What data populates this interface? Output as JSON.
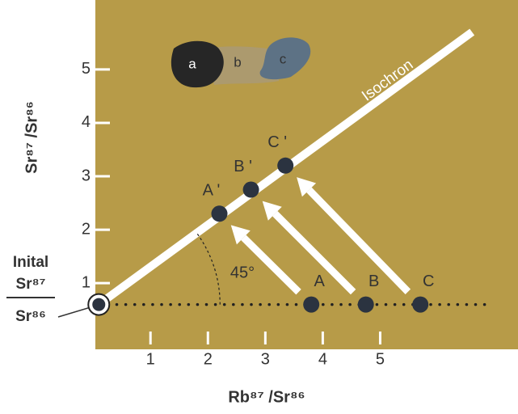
{
  "chart_data": {
    "type": "scatter",
    "y_label": "Sr⁸⁷ /Sr⁸⁶",
    "x_label": "Rb⁸⁷ /Sr⁸⁶",
    "initial_label": {
      "title": "Inital",
      "numerator": "Sr⁸⁷",
      "denominator": "Sr⁸⁶"
    },
    "isochron_label": "Isochron",
    "angle_label": "45°",
    "inset_labels": [
      "a",
      "b",
      "c"
    ],
    "xlim": [
      0.04,
      7.4
    ],
    "ylim": [
      -0.36,
      6.3
    ],
    "xticks": [
      1,
      2,
      3,
      4,
      5
    ],
    "yticks": [
      1,
      2,
      3,
      4,
      5
    ],
    "initial": {
      "x": 0.1,
      "y": 0.6
    },
    "isochron": {
      "x": [
        0.1,
        6.6
      ],
      "y": [
        0.6,
        5.7
      ]
    },
    "baseline": {
      "x": [
        0.1,
        6.9
      ],
      "y": [
        0.6,
        0.6
      ]
    },
    "points": [
      {
        "label": "A",
        "x": 3.8,
        "y": 0.6
      },
      {
        "label": "B",
        "x": 4.75,
        "y": 0.6
      },
      {
        "label": "C",
        "x": 5.7,
        "y": 0.6
      },
      {
        "label": "A '",
        "x": 2.2,
        "y": 2.3
      },
      {
        "label": "B '",
        "x": 2.75,
        "y": 2.75
      },
      {
        "label": "C '",
        "x": 3.35,
        "y": 3.2
      }
    ],
    "background_color": "#b79b48",
    "point_color": "#2b3340"
  }
}
